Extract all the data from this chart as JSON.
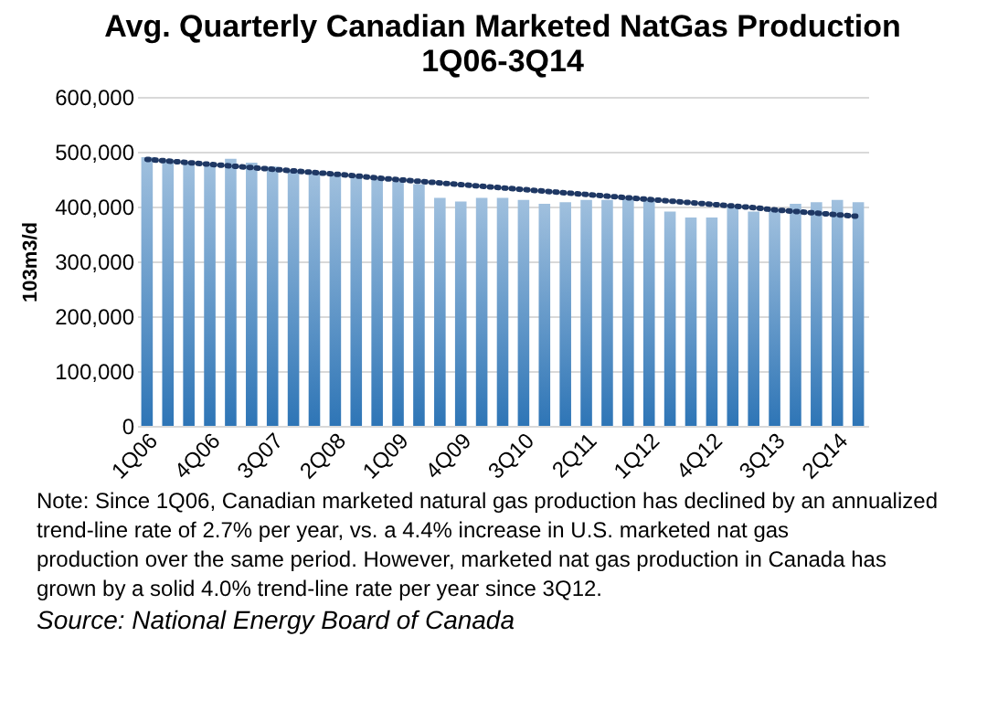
{
  "chart_data": {
    "type": "bar",
    "title": "Avg. Quarterly Canadian Marketed NatGas Production\n1Q06-3Q14",
    "ylabel": "103m3/d",
    "categories": [
      "1Q06",
      null,
      null,
      "4Q06",
      null,
      null,
      "3Q07",
      null,
      null,
      "2Q08",
      null,
      null,
      "1Q09",
      null,
      null,
      "4Q09",
      null,
      null,
      "3Q10",
      null,
      null,
      "2Q11",
      null,
      null,
      "1Q12",
      null,
      null,
      "4Q12",
      null,
      null,
      "3Q13",
      null,
      null,
      "2Q14",
      null
    ],
    "series": [
      {
        "color": "#2e75b6",
        "values": [
          490000,
          486000,
          480000,
          478000,
          487000,
          480000,
          473000,
          467000,
          462000,
          460000,
          456000,
          449000,
          445000,
          441000,
          416000,
          409000,
          416000,
          416000,
          412000,
          405000,
          408000,
          412000,
          412000,
          414000,
          414000,
          391000,
          380000,
          380000,
          400000,
          391000,
          395000,
          405000,
          408000,
          412000,
          408000
        ]
      },
      {
        "type": "line",
        "color": "#1f3864",
        "line_style": "dotted",
        "marker": "none",
        "values": [
          486000,
          483000,
          480000,
          477000,
          474000,
          471000,
          468000,
          465000,
          462000,
          459000,
          456000,
          452000,
          449000,
          446000,
          443000,
          440000,
          437000,
          434000,
          431000,
          428000,
          425000,
          422000,
          419000,
          416000,
          413000,
          410000,
          407000,
          404000,
          401000,
          398000,
          394000,
          391000,
          388000,
          385000,
          382000
        ]
      }
    ],
    "ylim": [
      0,
      600000
    ],
    "yticks": [
      0,
      {
        "value": 100000,
        "label": "100,000"
      },
      {
        "value": 200000,
        "label": "200,000"
      },
      {
        "value": 300000,
        "label": "300,000"
      },
      {
        "value": 400000,
        "label": "400,000"
      },
      {
        "value": 500000,
        "label": "500,000"
      },
      {
        "value": 600000,
        "label": "600,000"
      }
    ],
    "grid": "y",
    "annotations": [
      "Note: Since 1Q06, Canadian marketed natural gas production has declined by an annualized trend-line rate of 2.7% per year, vs. a 4.4% increase in U.S. marketed nat gas production over the same period. However, marketed nat gas production in Canada has grown by a solid 4.0% trend-line rate per year since 3Q12.",
      "Source: National Energy Board of Canada"
    ]
  }
}
